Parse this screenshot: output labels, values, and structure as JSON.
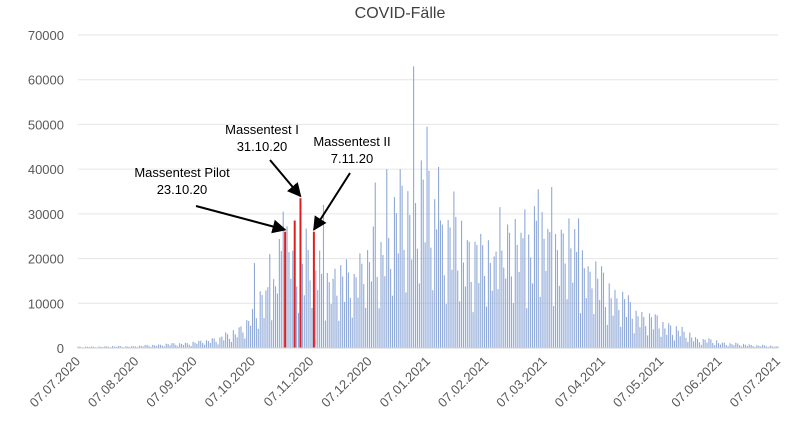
{
  "chart_data": {
    "type": "bar",
    "title": "COVID-Fälle",
    "xlabel": "",
    "ylabel": "",
    "ylim": [
      0,
      70000
    ],
    "y_ticks": [
      "0",
      "10000",
      "20000",
      "30000",
      "40000",
      "50000",
      "60000",
      "70000"
    ],
    "x_range": [
      "2020-07-07",
      "2021-07-07"
    ],
    "x_tick_labels": [
      "07.07.2020",
      "07.08.2020",
      "07.09.2020",
      "07.10.2020",
      "07.11.2020",
      "07.12.2020",
      "07.01.2021",
      "07.02.2021",
      "07.03.2021",
      "07.04.2021",
      "07.05.2021",
      "07.06.2021",
      "07.07.2021"
    ],
    "grid": "horizontal",
    "bar_color": "#8fa9d8",
    "highlight_color": "#e02020",
    "daily_cases_profile": [
      {
        "date": "2020-07-07",
        "value": 300
      },
      {
        "date": "2020-08-07",
        "value": 500
      },
      {
        "date": "2020-09-07",
        "value": 1500
      },
      {
        "date": "2020-09-25",
        "value": 3500
      },
      {
        "date": "2020-10-07",
        "value": 9000
      },
      {
        "date": "2020-10-15",
        "value": 17000
      },
      {
        "date": "2020-10-25",
        "value": 26000
      },
      {
        "date": "2020-11-07",
        "value": 22000
      },
      {
        "date": "2020-11-20",
        "value": 17000
      },
      {
        "date": "2020-12-05",
        "value": 23000
      },
      {
        "date": "2020-12-20",
        "value": 34000
      },
      {
        "date": "2021-01-02",
        "value": 42000
      },
      {
        "date": "2021-01-15",
        "value": 30000
      },
      {
        "date": "2021-02-07",
        "value": 23000
      },
      {
        "date": "2021-02-20",
        "value": 27000
      },
      {
        "date": "2021-03-07",
        "value": 30000
      },
      {
        "date": "2021-03-20",
        "value": 27000
      },
      {
        "date": "2021-04-07",
        "value": 17000
      },
      {
        "date": "2021-04-25",
        "value": 9000
      },
      {
        "date": "2021-05-10",
        "value": 6000
      },
      {
        "date": "2021-05-25",
        "value": 2500
      },
      {
        "date": "2021-06-10",
        "value": 1200
      },
      {
        "date": "2021-07-07",
        "value": 400
      }
    ],
    "peaks": [
      {
        "date": "2020-12-29",
        "value": 63000
      },
      {
        "date": "2021-01-05",
        "value": 49500
      },
      {
        "date": "2021-01-11",
        "value": 40500
      },
      {
        "date": "2020-12-22",
        "value": 40000
      },
      {
        "date": "2020-12-15",
        "value": 40000
      },
      {
        "date": "2020-12-09",
        "value": 37000
      },
      {
        "date": "2021-01-19",
        "value": 35000
      },
      {
        "date": "2021-03-04",
        "value": 35500
      },
      {
        "date": "2021-03-11",
        "value": 36000
      },
      {
        "date": "2021-02-12",
        "value": 31500
      },
      {
        "date": "2021-02-25",
        "value": 31000
      },
      {
        "date": "2021-03-25",
        "value": 29000
      },
      {
        "date": "2020-11-12",
        "value": 32000
      },
      {
        "date": "2020-10-22",
        "value": 30500
      },
      {
        "date": "2020-10-15",
        "value": 21000
      },
      {
        "date": "2020-10-07",
        "value": 19000
      }
    ],
    "highlighted_bars": [
      {
        "date": "2020-10-23",
        "value": 26000
      },
      {
        "date": "2020-10-28",
        "value": 28500
      },
      {
        "date": "2020-10-31",
        "value": 33500
      },
      {
        "date": "2020-11-07",
        "value": 26000
      }
    ],
    "annotations": [
      {
        "lines": [
          "Massentest Pilot",
          "23.10.20"
        ],
        "target_date": "2020-10-23",
        "target_value": 26000
      },
      {
        "lines": [
          "Massentest I",
          "31.10.20"
        ],
        "target_date": "2020-10-31",
        "target_value": 33500
      },
      {
        "lines": [
          "Massentest II",
          "7.11.20"
        ],
        "target_date": "2020-11-07",
        "target_value": 26000
      }
    ]
  }
}
